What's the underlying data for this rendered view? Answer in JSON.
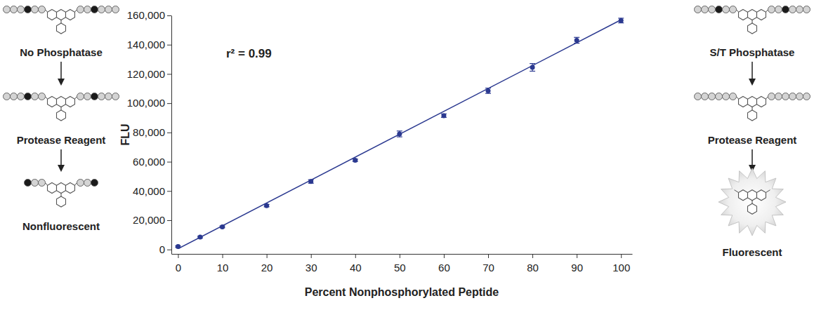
{
  "chart_data": {
    "type": "scatter",
    "x_label": "Percent Nonphosphorylated Peptide",
    "y_label": "FLU",
    "annotations": [
      {
        "text": "r² = 0.99"
      }
    ],
    "x": [
      0,
      5,
      10,
      20,
      30,
      40,
      50,
      60,
      70,
      80,
      90,
      100
    ],
    "series": [
      {
        "color": "#2b3990",
        "marker": "circle",
        "line_style": "none",
        "values": [
          2000,
          8500,
          15500,
          30000,
          46500,
          61000,
          79000,
          91500,
          108500,
          124500,
          143000,
          156500
        ],
        "errors": [
          500,
          600,
          600,
          800,
          1200,
          800,
          2000,
          1200,
          1800,
          2600,
          2000,
          1600
        ]
      }
    ],
    "trendline": {
      "x": [
        0,
        100
      ],
      "values": [
        500,
        157000
      ],
      "color": "#2b3990",
      "line_style": "solid"
    },
    "xlim": [
      -1.5,
      102.5
    ],
    "xticks": [
      0,
      10,
      20,
      30,
      40,
      50,
      60,
      70,
      80,
      90,
      100
    ],
    "ylim": [
      -3000,
      160000
    ],
    "yticks": [
      0,
      {
        "value": 20000,
        "label": "20,000"
      },
      {
        "value": 40000,
        "label": "40,000"
      },
      {
        "value": 60000,
        "label": "60,000"
      },
      {
        "value": 80000,
        "label": "80,000"
      },
      {
        "value": 100000,
        "label": "100,000"
      },
      {
        "value": 120000,
        "label": "120,000"
      },
      {
        "value": 140000,
        "label": "140,000"
      },
      {
        "value": 160000,
        "label": "160,000"
      }
    ],
    "grid": false
  },
  "diagrams": [
    {
      "labels": [
        "No Phosphatase",
        "Protease Reagent",
        "Nonfluorescent"
      ]
    },
    {
      "labels": [
        "S/T Phosphatase",
        "Protease Reagent",
        "Fluorescent"
      ]
    }
  ]
}
